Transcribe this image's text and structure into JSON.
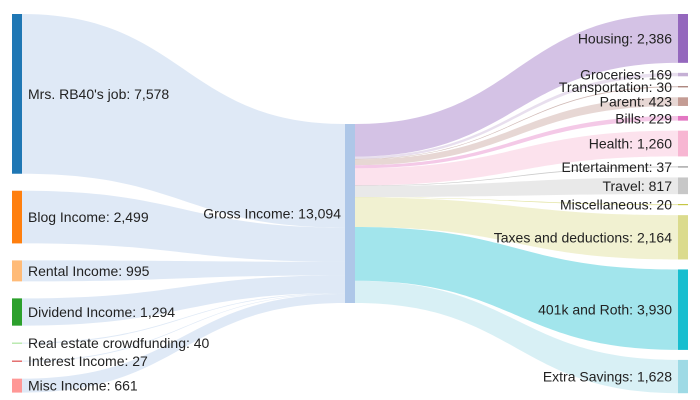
{
  "chart_data": {
    "type": "sankey",
    "title": "",
    "center": {
      "name": "Gross Income",
      "value": 13094,
      "label": "Gross Income: 13,094",
      "color": "#aec7e8"
    },
    "sources": [
      {
        "name": "Mrs. RB40's job",
        "value": 7578,
        "label": "Mrs. RB40's job: 7,578",
        "color": "#1f77b4"
      },
      {
        "name": "Blog Income",
        "value": 2499,
        "label": "Blog Income: 2,499",
        "color": "#ff7f0e"
      },
      {
        "name": "Rental Income",
        "value": 995,
        "label": "Rental Income: 995",
        "color": "#ffbb78"
      },
      {
        "name": "Dividend Income",
        "value": 1294,
        "label": "Dividend Income: 1,294",
        "color": "#2ca02c"
      },
      {
        "name": "Real estate crowdfunding",
        "value": 40,
        "label": "Real estate crowdfunding: 40",
        "color": "#98df8a"
      },
      {
        "name": "Interest Income",
        "value": 27,
        "label": "Interest Income: 27",
        "color": "#d62728"
      },
      {
        "name": "Misc Income",
        "value": 661,
        "label": "Misc Income: 661",
        "color": "#ff9896"
      }
    ],
    "targets": [
      {
        "name": "Housing",
        "value": 2386,
        "label": "Housing: 2,386",
        "color": "#9467bd"
      },
      {
        "name": "Groceries",
        "value": 169,
        "label": "Groceries: 169",
        "color": "#c5b0d5"
      },
      {
        "name": "Transportation",
        "value": 30,
        "label": "Transportation: 30",
        "color": "#8c564b"
      },
      {
        "name": "Parent",
        "value": 423,
        "label": "Parent: 423",
        "color": "#c49c94"
      },
      {
        "name": "Bills",
        "value": 229,
        "label": "Bills: 229",
        "color": "#e377c2"
      },
      {
        "name": "Health",
        "value": 1260,
        "label": "Health: 1,260",
        "color": "#f7b6d2"
      },
      {
        "name": "Entertainment",
        "value": 37,
        "label": "Entertainment: 37",
        "color": "#7f7f7f"
      },
      {
        "name": "Travel",
        "value": 817,
        "label": "Travel: 817",
        "color": "#c7c7c7"
      },
      {
        "name": "Miscellaneous",
        "value": 20,
        "label": "Miscellaneous: 20",
        "color": "#bcbd22"
      },
      {
        "name": "Taxes and deductions",
        "value": 2164,
        "label": "Taxes and deductions: 2,164",
        "color": "#dbdb8d"
      },
      {
        "name": "401k and Roth",
        "value": 3930,
        "label": "401k and Roth: 3,930",
        "color": "#17becf"
      },
      {
        "name": "Extra Savings",
        "value": 1628,
        "label": "Extra Savings: 1,628",
        "color": "#9edae5"
      }
    ]
  }
}
